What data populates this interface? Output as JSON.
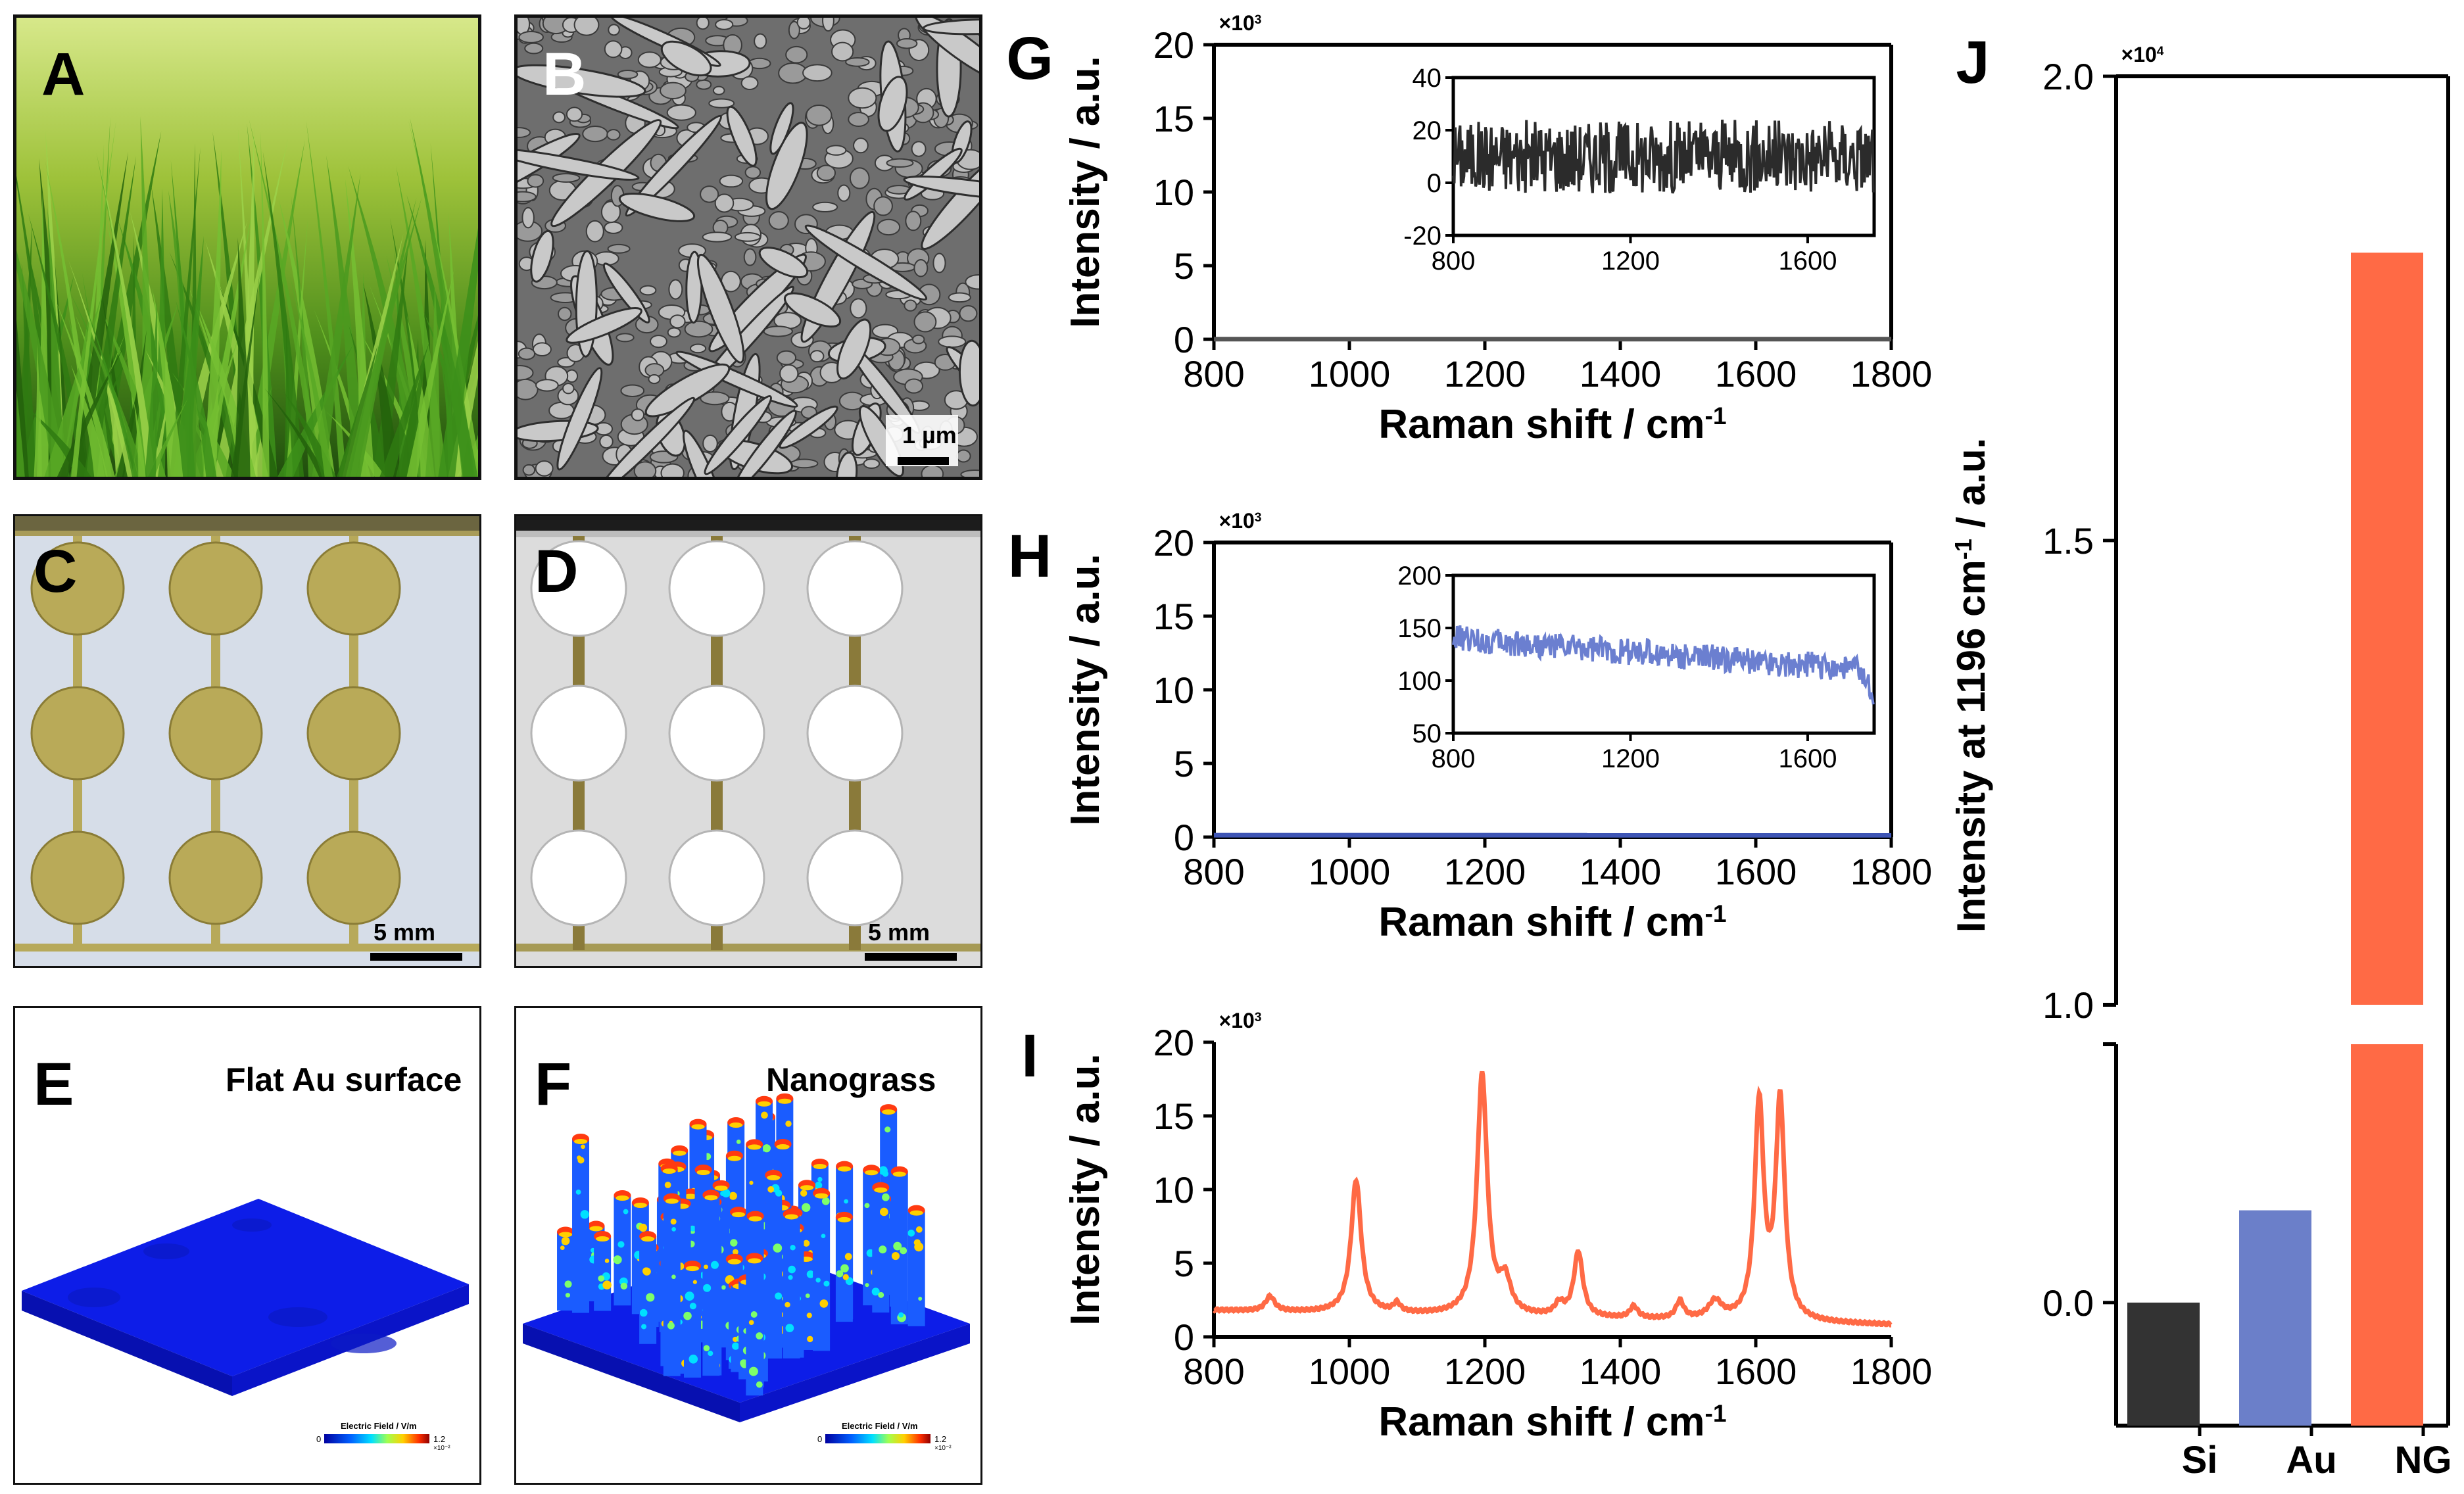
{
  "panels": {
    "A": {
      "label": "A"
    },
    "B": {
      "label": "B",
      "scale": "1 µm"
    },
    "C": {
      "label": "C",
      "scale": "5 mm"
    },
    "D": {
      "label": "D",
      "scale": "5 mm"
    },
    "E": {
      "label": "E",
      "title": "Flat Au surface",
      "colorbar_title": "Electric Field / V/m",
      "colorbar_min": "0",
      "colorbar_max": "1.2",
      "colorbar_exp": "×10⁻²"
    },
    "F": {
      "label": "F",
      "title": "Nanograss",
      "colorbar_title": "Electric Field / V/m",
      "colorbar_min": "0",
      "colorbar_max": "1.2",
      "colorbar_exp": "×10⁻²"
    }
  },
  "colors": {
    "si": "#333333",
    "au": "#6b7fc9",
    "ng": "#ff6a45",
    "spectrum_g": "#555555",
    "inset_g": "#2b2b2b",
    "spectrum_h": "#3e55b5",
    "inset_h": "#6b7fd0",
    "spectrum_i": "#ff6a45"
  },
  "chart_data": [
    {
      "id": "G",
      "label": "G",
      "type": "line",
      "xlabel": "Raman shift / cm",
      "xlabel_sup": "-1",
      "ylabel": "Intensity / a.u.",
      "multiplier": "×10",
      "multiplier_sup": "3",
      "xlim": [
        800,
        1800
      ],
      "ylim": [
        0,
        20
      ],
      "xticks": [
        800,
        1000,
        1200,
        1400,
        1600,
        1800
      ],
      "yticks": [
        0,
        5,
        10,
        15,
        20
      ],
      "series": [
        {
          "name": "Si",
          "x": [
            800,
            1800
          ],
          "y": [
            0.01,
            0.01
          ]
        }
      ],
      "inset": {
        "xlim": [
          800,
          1750
        ],
        "ylim": [
          -20,
          40
        ],
        "xticks": [
          800,
          1200,
          1600
        ],
        "yticks": [
          -20,
          0,
          20,
          40
        ],
        "mean": 10,
        "amplitude": 14
      }
    },
    {
      "id": "H",
      "label": "H",
      "type": "line",
      "xlabel": "Raman shift / cm",
      "xlabel_sup": "-1",
      "ylabel": "Intensity / a.u.",
      "multiplier": "×10",
      "multiplier_sup": "3",
      "xlim": [
        800,
        1800
      ],
      "ylim": [
        0,
        20
      ],
      "xticks": [
        800,
        1000,
        1200,
        1400,
        1600,
        1800
      ],
      "yticks": [
        0,
        5,
        10,
        15,
        20
      ],
      "series": [
        {
          "name": "Au",
          "x": [
            800,
            1800
          ],
          "y": [
            0.13,
            0.12
          ]
        }
      ],
      "inset": {
        "xlim": [
          800,
          1750
        ],
        "ylim": [
          50,
          200
        ],
        "xticks": [
          800,
          1200,
          1600
        ],
        "yticks": [
          50,
          100,
          150,
          200
        ],
        "start": 140,
        "end": 110,
        "amplitude": 13
      }
    },
    {
      "id": "I",
      "label": "I",
      "type": "line",
      "xlabel": "Raman shift / cm",
      "xlabel_sup": "-1",
      "ylabel": "Intensity / a.u.",
      "multiplier": "×10",
      "multiplier_sup": "3",
      "xlim": [
        800,
        1800
      ],
      "ylim": [
        0,
        20
      ],
      "xticks": [
        800,
        1000,
        1200,
        1400,
        1600,
        1800
      ],
      "yticks": [
        0,
        5,
        10,
        15,
        20
      ],
      "series": [
        {
          "name": "NG",
          "baseline_start": 1.8,
          "baseline_end": 0.8,
          "peaks": [
            {
              "x": 883,
              "h": 1.0,
              "w": 8
            },
            {
              "x": 1010,
              "h": 9.0,
              "w": 9
            },
            {
              "x": 1070,
              "h": 0.6,
              "w": 6
            },
            {
              "x": 1196,
              "h": 16.3,
              "w": 9
            },
            {
              "x": 1230,
              "h": 2.2,
              "w": 10
            },
            {
              "x": 1310,
              "h": 0.8,
              "w": 8
            },
            {
              "x": 1338,
              "h": 4.4,
              "w": 8
            },
            {
              "x": 1420,
              "h": 0.8,
              "w": 7
            },
            {
              "x": 1488,
              "h": 1.2,
              "w": 7
            },
            {
              "x": 1540,
              "h": 1.2,
              "w": 12
            },
            {
              "x": 1605,
              "h": 14.6,
              "w": 8
            },
            {
              "x": 1636,
              "h": 14.8,
              "w": 8
            }
          ]
        }
      ]
    },
    {
      "id": "J",
      "label": "J",
      "type": "bar",
      "ylabel": "Intensity at 1196 cm",
      "ylabel_sup": "-1",
      "ylabel_tail": " / a.u.",
      "multiplier": "×10",
      "multiplier_sup": "4",
      "categories": [
        "Si",
        "Au",
        "NG"
      ],
      "values": [
        0.0,
        0.15,
        1.81
      ],
      "ylim": [
        -0.2,
        2.0
      ],
      "axis_break": [
        0.42,
        1.0
      ],
      "yticks": [
        {
          "value": 0.0,
          "label": "0.0"
        },
        {
          "value": 1.0,
          "label": "1.0"
        },
        {
          "value": 1.5,
          "label": "1.5"
        },
        {
          "value": 2.0,
          "label": "2.0"
        }
      ]
    }
  ]
}
